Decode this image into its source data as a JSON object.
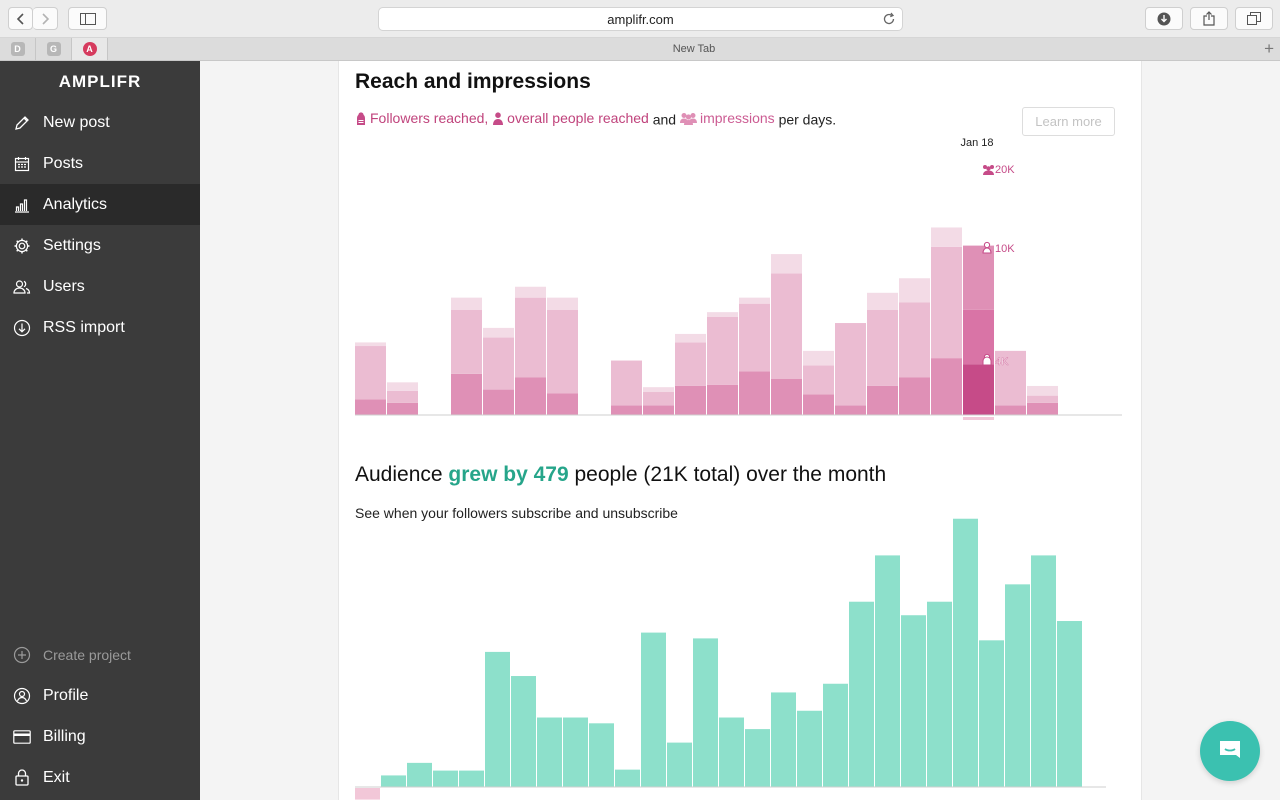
{
  "browser": {
    "url": "amplifr.com",
    "tab_title": "New Tab",
    "pinned_tabs": [
      {
        "letter": "D",
        "color": "#b7b7b7"
      },
      {
        "letter": "G",
        "color": "#b7b7b7"
      },
      {
        "letter": "A",
        "color": "#d63b5e"
      }
    ]
  },
  "sidebar": {
    "logo": "AMPLIFR",
    "items": [
      {
        "label": "New post",
        "icon": "pencil-icon"
      },
      {
        "label": "Posts",
        "icon": "calendar-icon"
      },
      {
        "label": "Analytics",
        "icon": "bar-chart-icon",
        "active": true
      },
      {
        "label": "Settings",
        "icon": "gear-icon"
      },
      {
        "label": "Users",
        "icon": "users-icon"
      },
      {
        "label": "RSS import",
        "icon": "download-circle-icon"
      }
    ],
    "bottom_items": [
      {
        "label": "Create project",
        "icon": "plus-circle-icon"
      },
      {
        "label": "Profile",
        "icon": "user-circle-icon"
      },
      {
        "label": "Billing",
        "icon": "credit-card-icon"
      },
      {
        "label": "Exit",
        "icon": "lock-icon"
      }
    ]
  },
  "reach": {
    "title": "Reach and impressions",
    "legend": {
      "followers": "Followers reached,",
      "overall": "overall people reached",
      "and": "and",
      "impressions": "impressions",
      "suffix": "per days."
    },
    "learn_more": "Learn more",
    "tooltip": {
      "date": "Jan 18",
      "impressions": "20K",
      "overall": "10K",
      "followers": "4K"
    }
  },
  "audience": {
    "title_prefix": "Audience",
    "title_highlight": "grew by 479",
    "title_suffix": "people (21K total) over the month",
    "subtitle": "See when your followers subscribe and unsubscribe"
  },
  "colors": {
    "sidebar_bg": "#3b3b3b",
    "followers": "#c64b88",
    "overall": "#df90b6",
    "impressions": "#ebbcd2",
    "audience": "#8de0cb",
    "accent_green": "#26a58a",
    "negative": "#f2c7d8"
  },
  "chart_data": [
    {
      "type": "bar",
      "stacked": true,
      "series": [
        {
          "name": "Followers reached",
          "values": [
            1.3,
            1.0,
            0,
            3.4,
            2.1,
            3.1,
            1.8,
            0,
            0.8,
            0.8,
            2.4,
            2.5,
            3.6,
            3.0,
            1.7,
            0.8,
            2.4,
            3.1,
            4.7,
            4.2,
            0.8,
            1.0,
            0,
            0
          ]
        },
        {
          "name": "overall people reached",
          "values": [
            4.4,
            1.0,
            0,
            5.3,
            4.3,
            6.6,
            6.9,
            0,
            3.7,
            1.1,
            3.6,
            5.6,
            5.6,
            8.7,
            2.4,
            6.8,
            6.3,
            6.2,
            9.2,
            4.5,
            4.5,
            0.6,
            0,
            0
          ]
        },
        {
          "name": "impressions",
          "values": [
            0.3,
            0.7,
            0,
            1.0,
            0.8,
            0.9,
            1.0,
            0,
            0,
            0.4,
            0.7,
            0.4,
            0.5,
            1.6,
            1.2,
            0,
            1.4,
            2.0,
            1.6,
            5.3,
            0,
            0.8,
            0,
            0
          ]
        }
      ],
      "highlight_index": 19
    },
    {
      "type": "bar",
      "series": [
        {
          "name": "Audience",
          "values": [
            -12,
            12,
            25,
            17,
            17,
            140,
            115,
            72,
            72,
            66,
            18,
            160,
            46,
            154,
            72,
            60,
            98,
            79,
            107,
            192,
            240,
            178,
            192,
            278,
            152,
            210,
            240,
            172,
            0
          ]
        }
      ]
    }
  ]
}
